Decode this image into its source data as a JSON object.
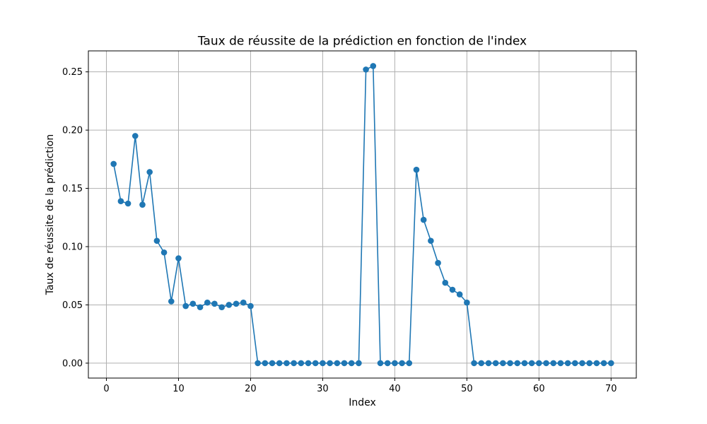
{
  "chart_data": {
    "type": "line",
    "title": "Taux de réussite de la prédiction en fonction de l'index",
    "xlabel": "Index",
    "ylabel": "Taux de réussite de la prédiction",
    "xlim": [
      -2.5,
      73.5
    ],
    "ylim": [
      -0.0128,
      0.268
    ],
    "xticks": [
      0,
      10,
      20,
      30,
      40,
      50,
      60,
      70
    ],
    "yticks": [
      0.0,
      0.05,
      0.1,
      0.15,
      0.2,
      0.25
    ],
    "ytick_labels": [
      "0.00",
      "0.05",
      "0.10",
      "0.15",
      "0.20",
      "0.25"
    ],
    "grid": true,
    "marker": "circle",
    "colors": {
      "series": "#1f77b4",
      "grid": "#b0b0b0",
      "axis": "#000000"
    },
    "series": [
      {
        "x": [
          1,
          2,
          3,
          4,
          5,
          6,
          7,
          8,
          9,
          10,
          11,
          12,
          13,
          14,
          15,
          16,
          17,
          18,
          19,
          20,
          21,
          22,
          23,
          24,
          25,
          26,
          27,
          28,
          29,
          30,
          31,
          32,
          33,
          34,
          35,
          36,
          37,
          38,
          39,
          40,
          41,
          42,
          43,
          44,
          45,
          46,
          47,
          48,
          49,
          50,
          51,
          52,
          53,
          54,
          55,
          56,
          57,
          58,
          59,
          60,
          61,
          62,
          63,
          64,
          65,
          66,
          67,
          68,
          69,
          70
        ],
        "values": [
          0.171,
          0.139,
          0.137,
          0.195,
          0.136,
          0.164,
          0.105,
          0.095,
          0.053,
          0.09,
          0.049,
          0.051,
          0.048,
          0.052,
          0.051,
          0.048,
          0.05,
          0.051,
          0.052,
          0.049,
          0,
          0,
          0,
          0,
          0,
          0,
          0,
          0,
          0,
          0,
          0,
          0,
          0,
          0,
          0,
          0.252,
          0.255,
          0,
          0,
          0,
          0,
          0,
          0.166,
          0.123,
          0.105,
          0.086,
          0.069,
          0.063,
          0.059,
          0.052,
          0,
          0,
          0,
          0,
          0,
          0,
          0,
          0,
          0,
          0,
          0,
          0,
          0,
          0,
          0,
          0,
          0,
          0,
          0,
          0
        ]
      }
    ]
  }
}
